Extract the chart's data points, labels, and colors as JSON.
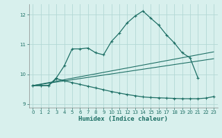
{
  "xlabel": "Humidex (Indice chaleur)",
  "xlim": [
    -0.5,
    23.5
  ],
  "ylim": [
    8.88,
    12.35
  ],
  "yticks": [
    9,
    10,
    11,
    12
  ],
  "xticks": [
    0,
    1,
    2,
    3,
    4,
    5,
    6,
    7,
    8,
    9,
    10,
    11,
    12,
    13,
    14,
    15,
    16,
    17,
    18,
    19,
    20,
    21,
    22,
    23
  ],
  "bg_color": "#d8f0ed",
  "line_color": "#1c6e64",
  "grid_color": "#b2d8d4",
  "curve1_x": [
    0,
    1,
    2,
    3,
    4,
    5,
    6,
    7,
    8,
    9,
    10,
    11,
    12,
    13,
    14,
    15,
    16,
    17,
    18,
    19,
    20,
    21
  ],
  "curve1_y": [
    9.62,
    9.62,
    9.62,
    9.88,
    10.28,
    10.85,
    10.85,
    10.88,
    10.72,
    10.65,
    11.1,
    11.38,
    11.72,
    11.95,
    12.12,
    11.88,
    11.65,
    11.32,
    11.05,
    10.72,
    10.55,
    9.88
  ],
  "curve2_x": [
    0,
    1,
    2,
    3,
    4,
    5,
    6,
    7,
    8,
    9,
    10,
    11,
    12,
    13,
    14,
    15,
    16,
    17,
    18,
    19,
    20,
    21,
    22,
    23
  ],
  "curve2_y": [
    9.62,
    9.62,
    9.62,
    9.85,
    9.78,
    9.72,
    9.66,
    9.6,
    9.54,
    9.48,
    9.42,
    9.37,
    9.32,
    9.28,
    9.24,
    9.22,
    9.21,
    9.2,
    9.19,
    9.18,
    9.18,
    9.18,
    9.2,
    9.25
  ],
  "trend1_x": [
    0,
    23
  ],
  "trend1_y": [
    9.62,
    10.75
  ],
  "trend2_x": [
    0,
    23
  ],
  "trend2_y": [
    9.62,
    10.52
  ]
}
